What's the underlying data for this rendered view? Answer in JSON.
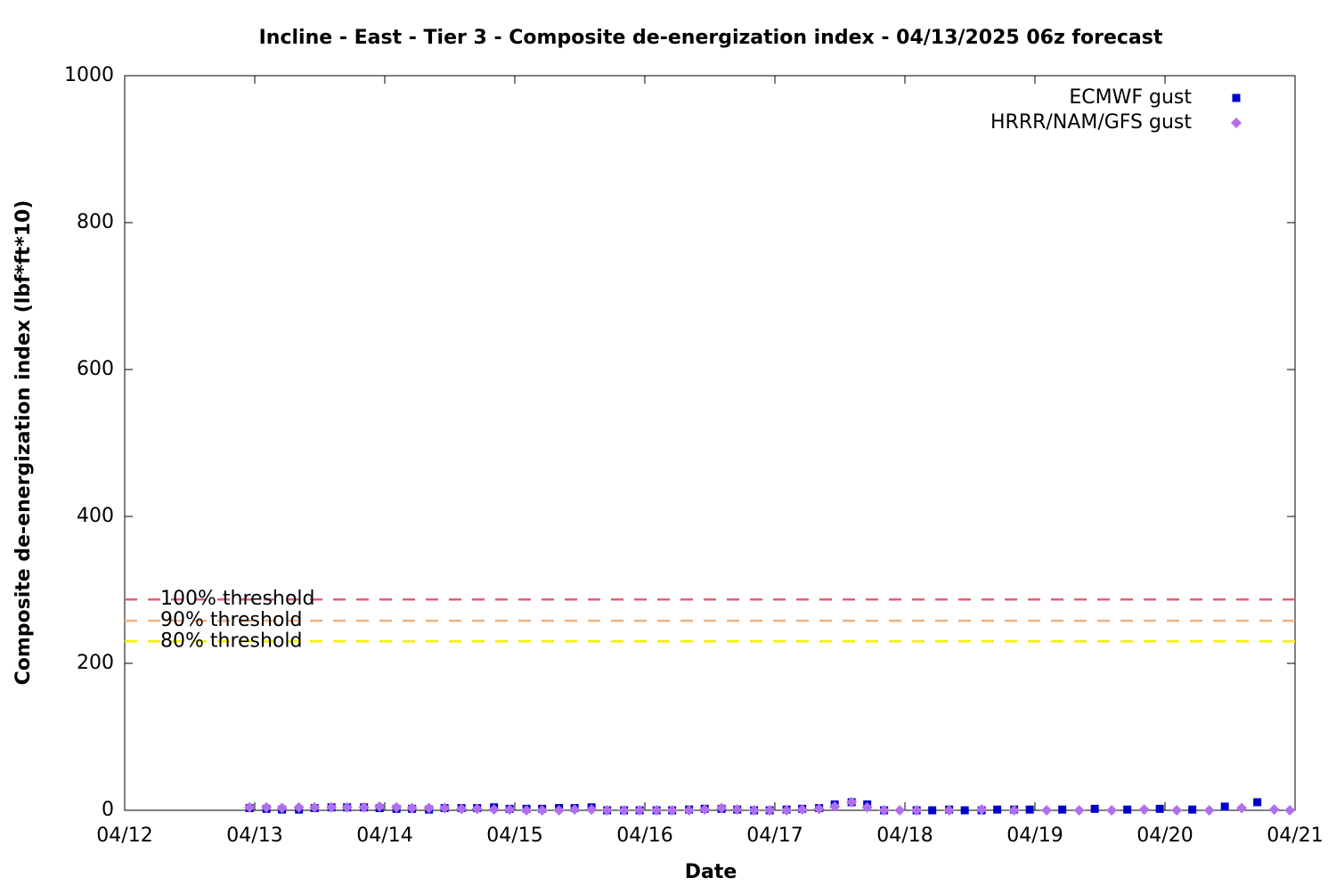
{
  "chart_data": {
    "type": "scatter",
    "title": "Incline - East - Tier 3 - Composite de-energization index - 04/13/2025 06z forecast",
    "x_label": "Date",
    "y_label": "Composite de-energization index (lbf*ft*10)",
    "xlim": [
      0,
      9
    ],
    "xticks": [
      {
        "value": 0,
        "label": "04/12"
      },
      {
        "value": 1,
        "label": "04/13"
      },
      {
        "value": 2,
        "label": "04/14"
      },
      {
        "value": 3,
        "label": "04/15"
      },
      {
        "value": 4,
        "label": "04/16"
      },
      {
        "value": 5,
        "label": "04/17"
      },
      {
        "value": 6,
        "label": "04/18"
      },
      {
        "value": 7,
        "label": "04/19"
      },
      {
        "value": 8,
        "label": "04/20"
      },
      {
        "value": 9,
        "label": "04/21"
      }
    ],
    "ylim": [
      0,
      1000
    ],
    "yticks": [
      0,
      200,
      400,
      600,
      800,
      1000
    ],
    "grid": false,
    "legend": "top-right",
    "thresholds": [
      {
        "label": "100% threshold",
        "value": 287,
        "color": "#e0607a"
      },
      {
        "label": "90% threshold",
        "value": 258,
        "color": "#f2b080"
      },
      {
        "label": "80% threshold",
        "value": 230,
        "color": "#f0f000"
      }
    ],
    "series": [
      {
        "name": "ECMWF gust",
        "color": "#0000cc",
        "marker": "square",
        "x": [
          0.96,
          1.09,
          1.21,
          1.34,
          1.46,
          1.59,
          1.71,
          1.84,
          1.96,
          2.09,
          2.21,
          2.34,
          2.46,
          2.59,
          2.71,
          2.84,
          2.96,
          3.09,
          3.21,
          3.34,
          3.46,
          3.59,
          3.71,
          3.84,
          3.96,
          4.09,
          4.21,
          4.34,
          4.46,
          4.59,
          4.71,
          4.84,
          4.96,
          5.09,
          5.21,
          5.34,
          5.46,
          5.59,
          5.71,
          5.84,
          6.09,
          6.21,
          6.34,
          6.46,
          6.59,
          6.71,
          6.84,
          6.96,
          7.21,
          7.46,
          7.71,
          7.96,
          8.21,
          8.46,
          8.71
        ],
        "values": [
          3,
          2,
          1,
          1,
          3,
          4,
          4,
          4,
          3,
          2,
          2,
          1,
          3,
          3,
          3,
          4,
          2,
          2,
          2,
          3,
          3,
          4,
          0,
          0,
          0,
          0,
          0,
          1,
          2,
          2,
          1,
          0,
          0,
          1,
          2,
          3,
          8,
          11,
          8,
          0,
          0,
          0,
          1,
          0,
          0,
          1,
          1,
          1,
          1,
          2,
          1,
          2,
          1,
          5,
          11
        ]
      },
      {
        "name": "HRRR/NAM/GFS gust",
        "color": "#b070ee",
        "marker": "diamond",
        "x": [
          0.96,
          1.09,
          1.21,
          1.34,
          1.46,
          1.59,
          1.71,
          1.84,
          1.96,
          2.09,
          2.21,
          2.34,
          2.46,
          2.59,
          2.71,
          2.84,
          2.96,
          3.09,
          3.21,
          3.34,
          3.46,
          3.59,
          3.71,
          3.84,
          3.96,
          4.09,
          4.21,
          4.34,
          4.46,
          4.59,
          4.71,
          4.84,
          4.96,
          5.09,
          5.21,
          5.34,
          5.46,
          5.59,
          5.71,
          5.84,
          5.96,
          6.09,
          6.34,
          6.59,
          6.84,
          7.09,
          7.34,
          7.59,
          7.84,
          8.09,
          8.34,
          8.59,
          8.84,
          8.96
        ],
        "values": [
          4,
          4,
          3,
          4,
          4,
          4,
          4,
          4,
          5,
          4,
          3,
          3,
          3,
          2,
          2,
          1,
          1,
          0,
          0,
          0,
          1,
          1,
          0,
          0,
          0,
          0,
          0,
          0,
          1,
          3,
          1,
          0,
          0,
          0,
          1,
          2,
          5,
          11,
          4,
          0,
          0,
          0,
          0,
          1,
          0,
          0,
          0,
          0,
          1,
          0,
          0,
          3,
          1,
          0
        ]
      }
    ]
  }
}
